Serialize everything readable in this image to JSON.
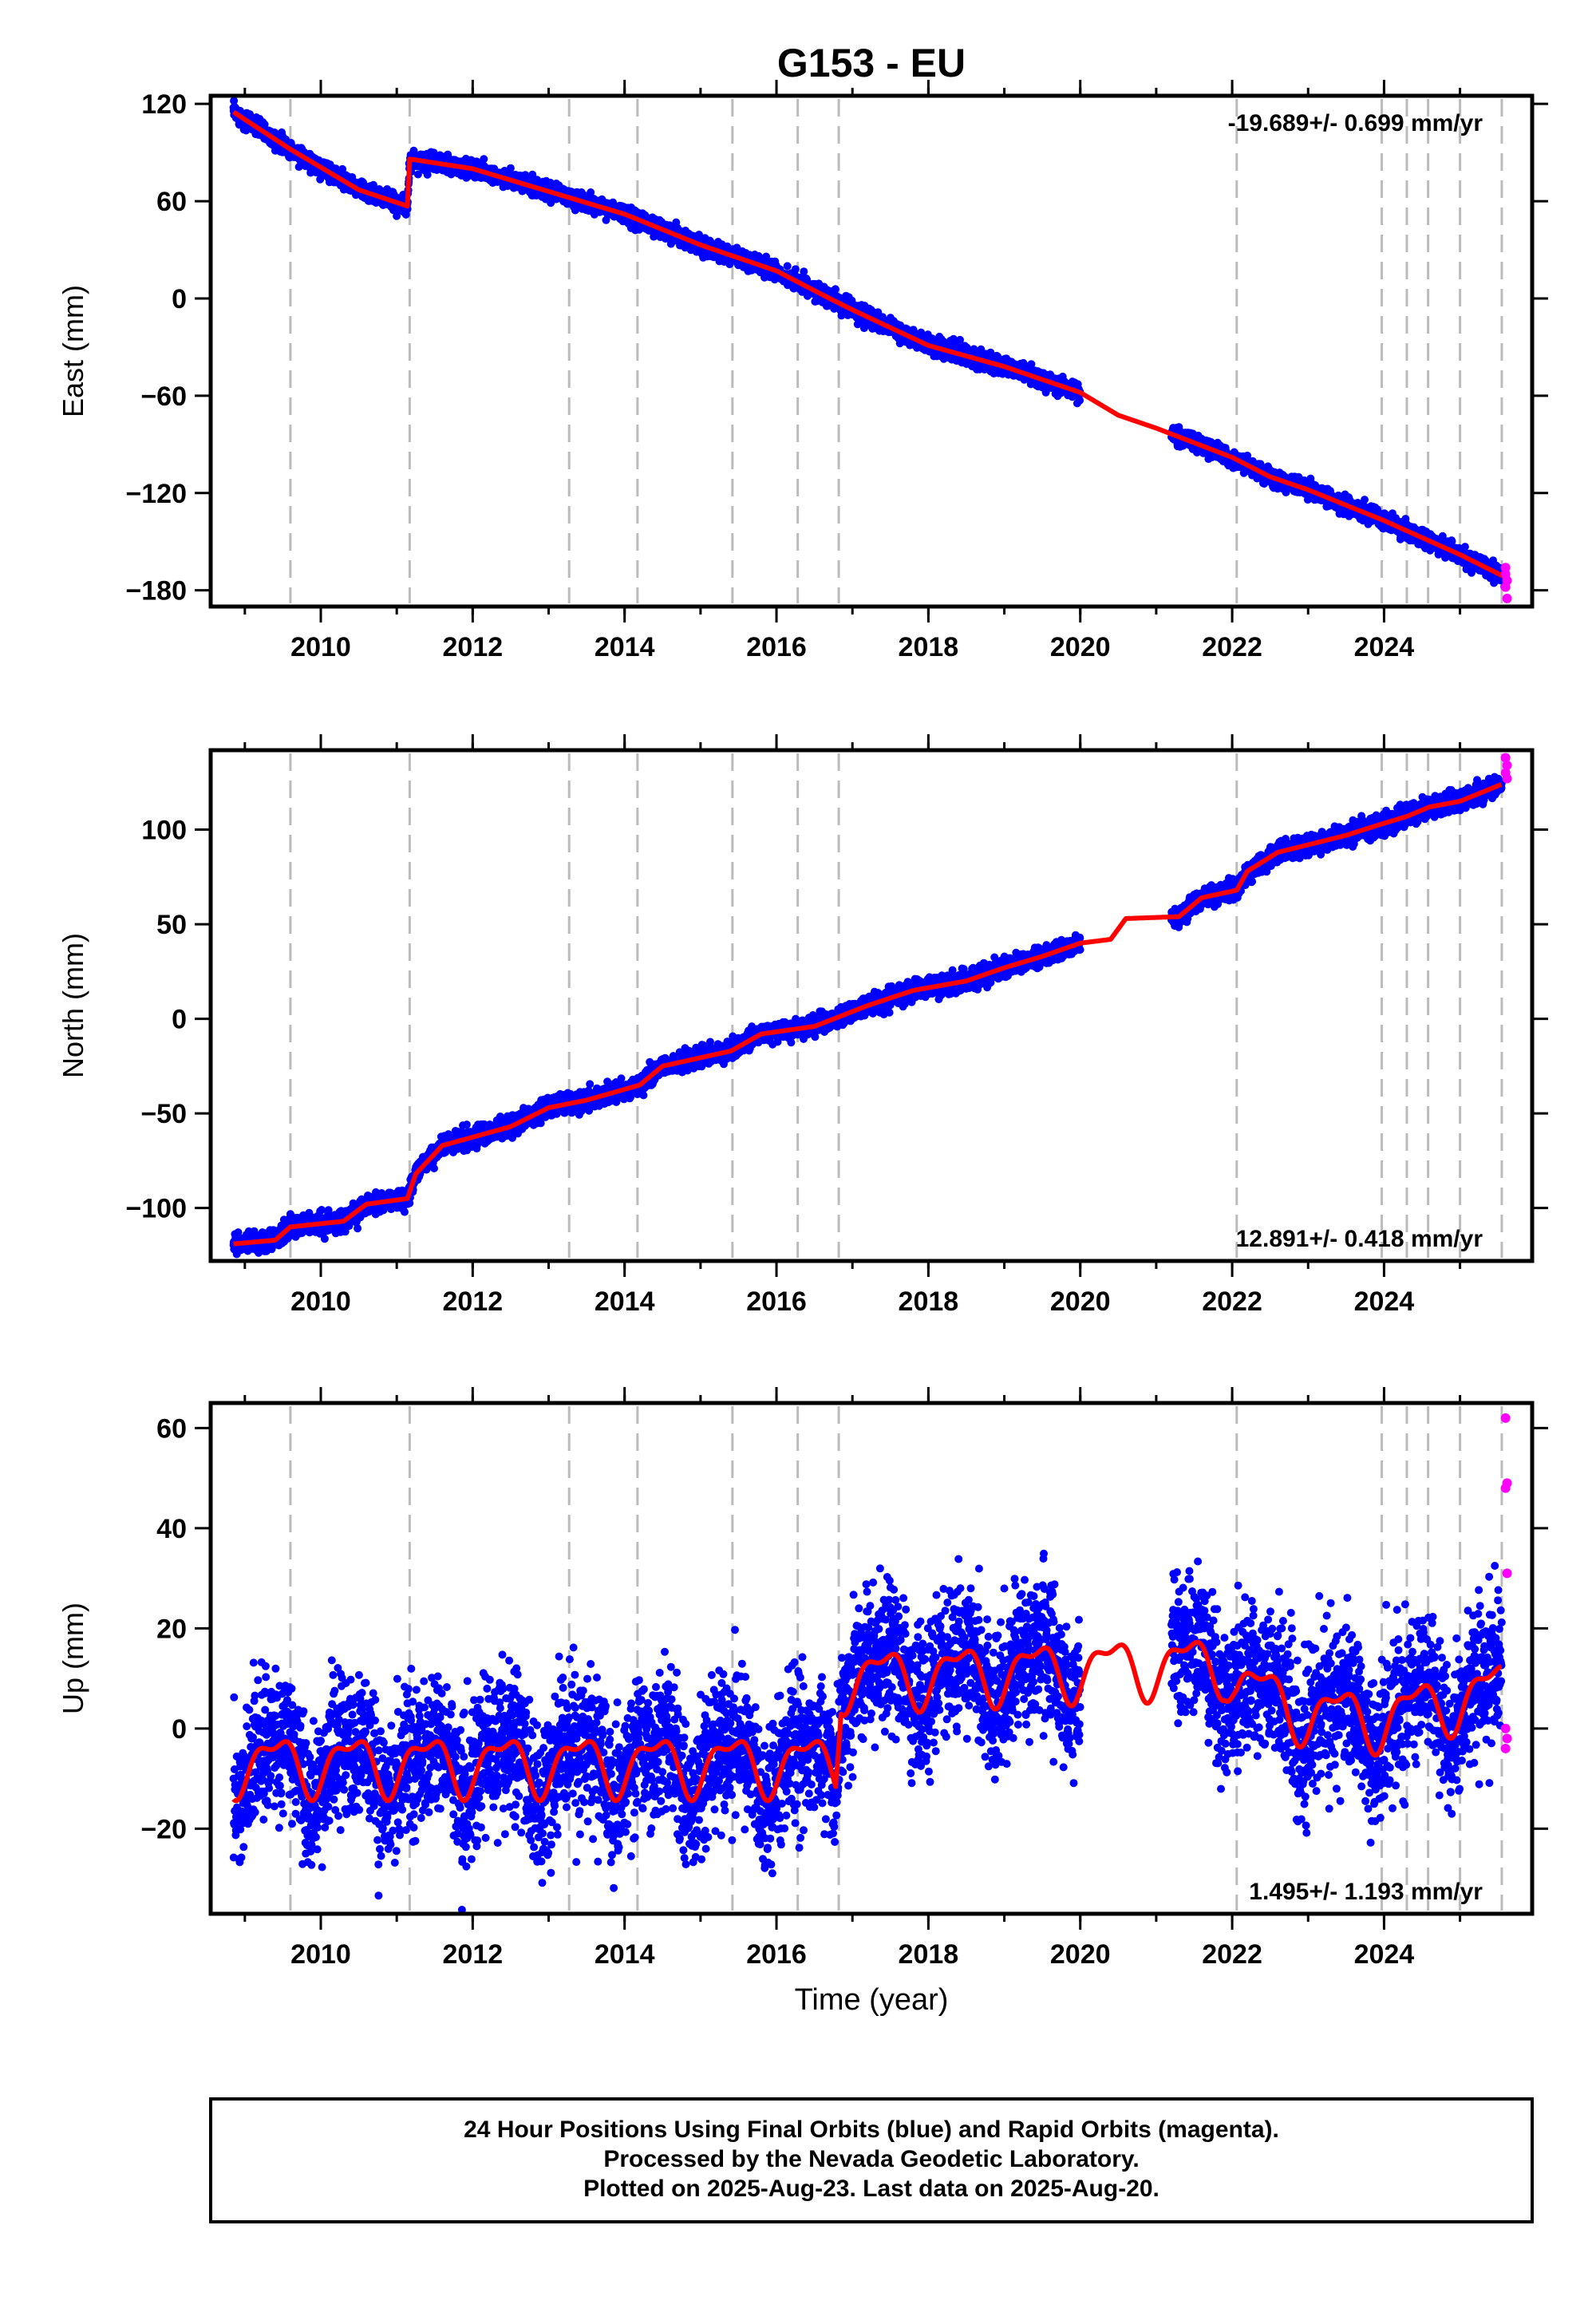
{
  "chart_data": {
    "type": "scatter",
    "title": "G153 - EU",
    "xlabel": "Time (year)",
    "xlim": [
      2008.55,
      2025.95
    ],
    "xticks": [
      2010,
      2012,
      2014,
      2016,
      2018,
      2020,
      2022,
      2024
    ],
    "xtick_labels": [
      "2010",
      "2012",
      "2014",
      "2016",
      "2018",
      "2020",
      "2022",
      "2024"
    ],
    "colors": {
      "final": "#0000ff",
      "rapid": "#ff00ff",
      "model": "#ff0000",
      "event_line": "#bbbbbb"
    },
    "event_lines": [
      2009.6,
      2011.17,
      2013.27,
      2014.17,
      2015.42,
      2016.28,
      2016.82,
      2022.06,
      2023.97,
      2024.3,
      2024.58,
      2025.0,
      2025.55
    ],
    "data_gaps": [
      [
        2020.0,
        2021.2
      ]
    ],
    "panels": [
      {
        "id": "east",
        "ylabel": "East (mm)",
        "ylim": [
          -190,
          125
        ],
        "yticks": [
          120,
          60,
          0,
          -60,
          -120,
          -180
        ],
        "ytick_labels": [
          "120",
          "60",
          "0",
          "−60",
          "−120",
          "−180"
        ],
        "rate_label": "-19.689+/- 0.699 mm/yr",
        "rate_position": "top-right",
        "noise_mm": 2.5,
        "seasonal_amp_mm": 0,
        "trend": [
          [
            2008.85,
            115
          ],
          [
            2009.6,
            92
          ],
          [
            2010.5,
            67
          ],
          [
            2011.14,
            57
          ],
          [
            2011.17,
            86
          ],
          [
            2012.0,
            80
          ],
          [
            2013.0,
            66
          ],
          [
            2014.0,
            52
          ],
          [
            2015.0,
            33
          ],
          [
            2016.0,
            17
          ],
          [
            2016.7,
            0
          ],
          [
            2017.0,
            -7
          ],
          [
            2018.0,
            -29
          ],
          [
            2019.0,
            -42
          ],
          [
            2020.0,
            -58
          ],
          [
            2020.5,
            -72
          ],
          [
            2021.0,
            -80
          ],
          [
            2022.0,
            -98
          ],
          [
            2022.5,
            -110
          ],
          [
            2023.0,
            -118
          ],
          [
            2024.0,
            -137
          ],
          [
            2025.0,
            -158
          ],
          [
            2025.6,
            -172
          ]
        ],
        "rapid_points": [
          [
            2025.6,
            -166
          ],
          [
            2025.6,
            -170
          ],
          [
            2025.62,
            -174
          ],
          [
            2025.6,
            -178
          ],
          [
            2025.62,
            -185
          ]
        ]
      },
      {
        "id": "north",
        "ylabel": "North (mm)",
        "ylim": [
          -128,
          142
        ],
        "yticks": [
          100,
          50,
          0,
          -50,
          -100
        ],
        "ytick_labels": [
          "100",
          "50",
          "0",
          "−50",
          "−100"
        ],
        "rate_label": "12.891+/- 0.418 mm/yr",
        "rate_position": "bottom-right",
        "noise_mm": 2.5,
        "seasonal_amp_mm": 0,
        "trend": [
          [
            2008.85,
            -119
          ],
          [
            2009.4,
            -117
          ],
          [
            2009.6,
            -110
          ],
          [
            2010.3,
            -107
          ],
          [
            2010.6,
            -98
          ],
          [
            2011.14,
            -95
          ],
          [
            2011.25,
            -82
          ],
          [
            2011.6,
            -67
          ],
          [
            2012.5,
            -57
          ],
          [
            2013.0,
            -47
          ],
          [
            2013.5,
            -43
          ],
          [
            2014.2,
            -35
          ],
          [
            2014.5,
            -25
          ],
          [
            2015.4,
            -17
          ],
          [
            2015.8,
            -8
          ],
          [
            2016.5,
            -4
          ],
          [
            2016.82,
            1
          ],
          [
            2017.2,
            7
          ],
          [
            2017.8,
            15
          ],
          [
            2018.5,
            20
          ],
          [
            2019.0,
            27
          ],
          [
            2019.5,
            33
          ],
          [
            2020.0,
            40
          ],
          [
            2020.4,
            42
          ],
          [
            2020.6,
            53
          ],
          [
            2021.3,
            54
          ],
          [
            2021.6,
            64
          ],
          [
            2022.06,
            68
          ],
          [
            2022.2,
            78
          ],
          [
            2022.6,
            88
          ],
          [
            2023.0,
            92
          ],
          [
            2023.5,
            97
          ],
          [
            2023.97,
            103
          ],
          [
            2024.3,
            107
          ],
          [
            2024.6,
            112
          ],
          [
            2025.0,
            115
          ],
          [
            2025.55,
            124
          ]
        ],
        "rapid_points": [
          [
            2025.6,
            138
          ],
          [
            2025.62,
            134
          ],
          [
            2025.6,
            130
          ],
          [
            2025.62,
            127
          ]
        ]
      },
      {
        "id": "up",
        "ylabel": "Up (mm)",
        "ylim": [
          -37,
          65
        ],
        "yticks": [
          60,
          40,
          20,
          0,
          -20
        ],
        "ytick_labels": [
          "60",
          "40",
          "20",
          "0",
          "−20"
        ],
        "rate_label": "1.495+/- 1.193 mm/yr",
        "rate_position": "bottom-right",
        "noise_mm": 7,
        "seasonal_amp_mm": 6.5,
        "trend": [
          [
            2008.85,
            -7
          ],
          [
            2016.78,
            -7
          ],
          [
            2016.85,
            10
          ],
          [
            2020.0,
            12
          ],
          [
            2021.9,
            13
          ],
          [
            2022.06,
            9
          ],
          [
            2023.0,
            3
          ],
          [
            2023.97,
            2
          ],
          [
            2024.5,
            4
          ],
          [
            2025.55,
            8
          ]
        ],
        "rapid_points": [
          [
            2025.6,
            62
          ],
          [
            2025.62,
            49
          ],
          [
            2025.6,
            48
          ],
          [
            2025.62,
            31
          ],
          [
            2025.6,
            0
          ],
          [
            2025.62,
            -2
          ],
          [
            2025.6,
            -4
          ]
        ]
      }
    ]
  },
  "footer": {
    "line1": "24 Hour Positions Using Final Orbits (blue) and Rapid Orbits (magenta).",
    "line2": "Processed by the Nevada Geodetic Laboratory.",
    "line3": "Plotted on 2025-Aug-23. Last data on 2025-Aug-20."
  }
}
